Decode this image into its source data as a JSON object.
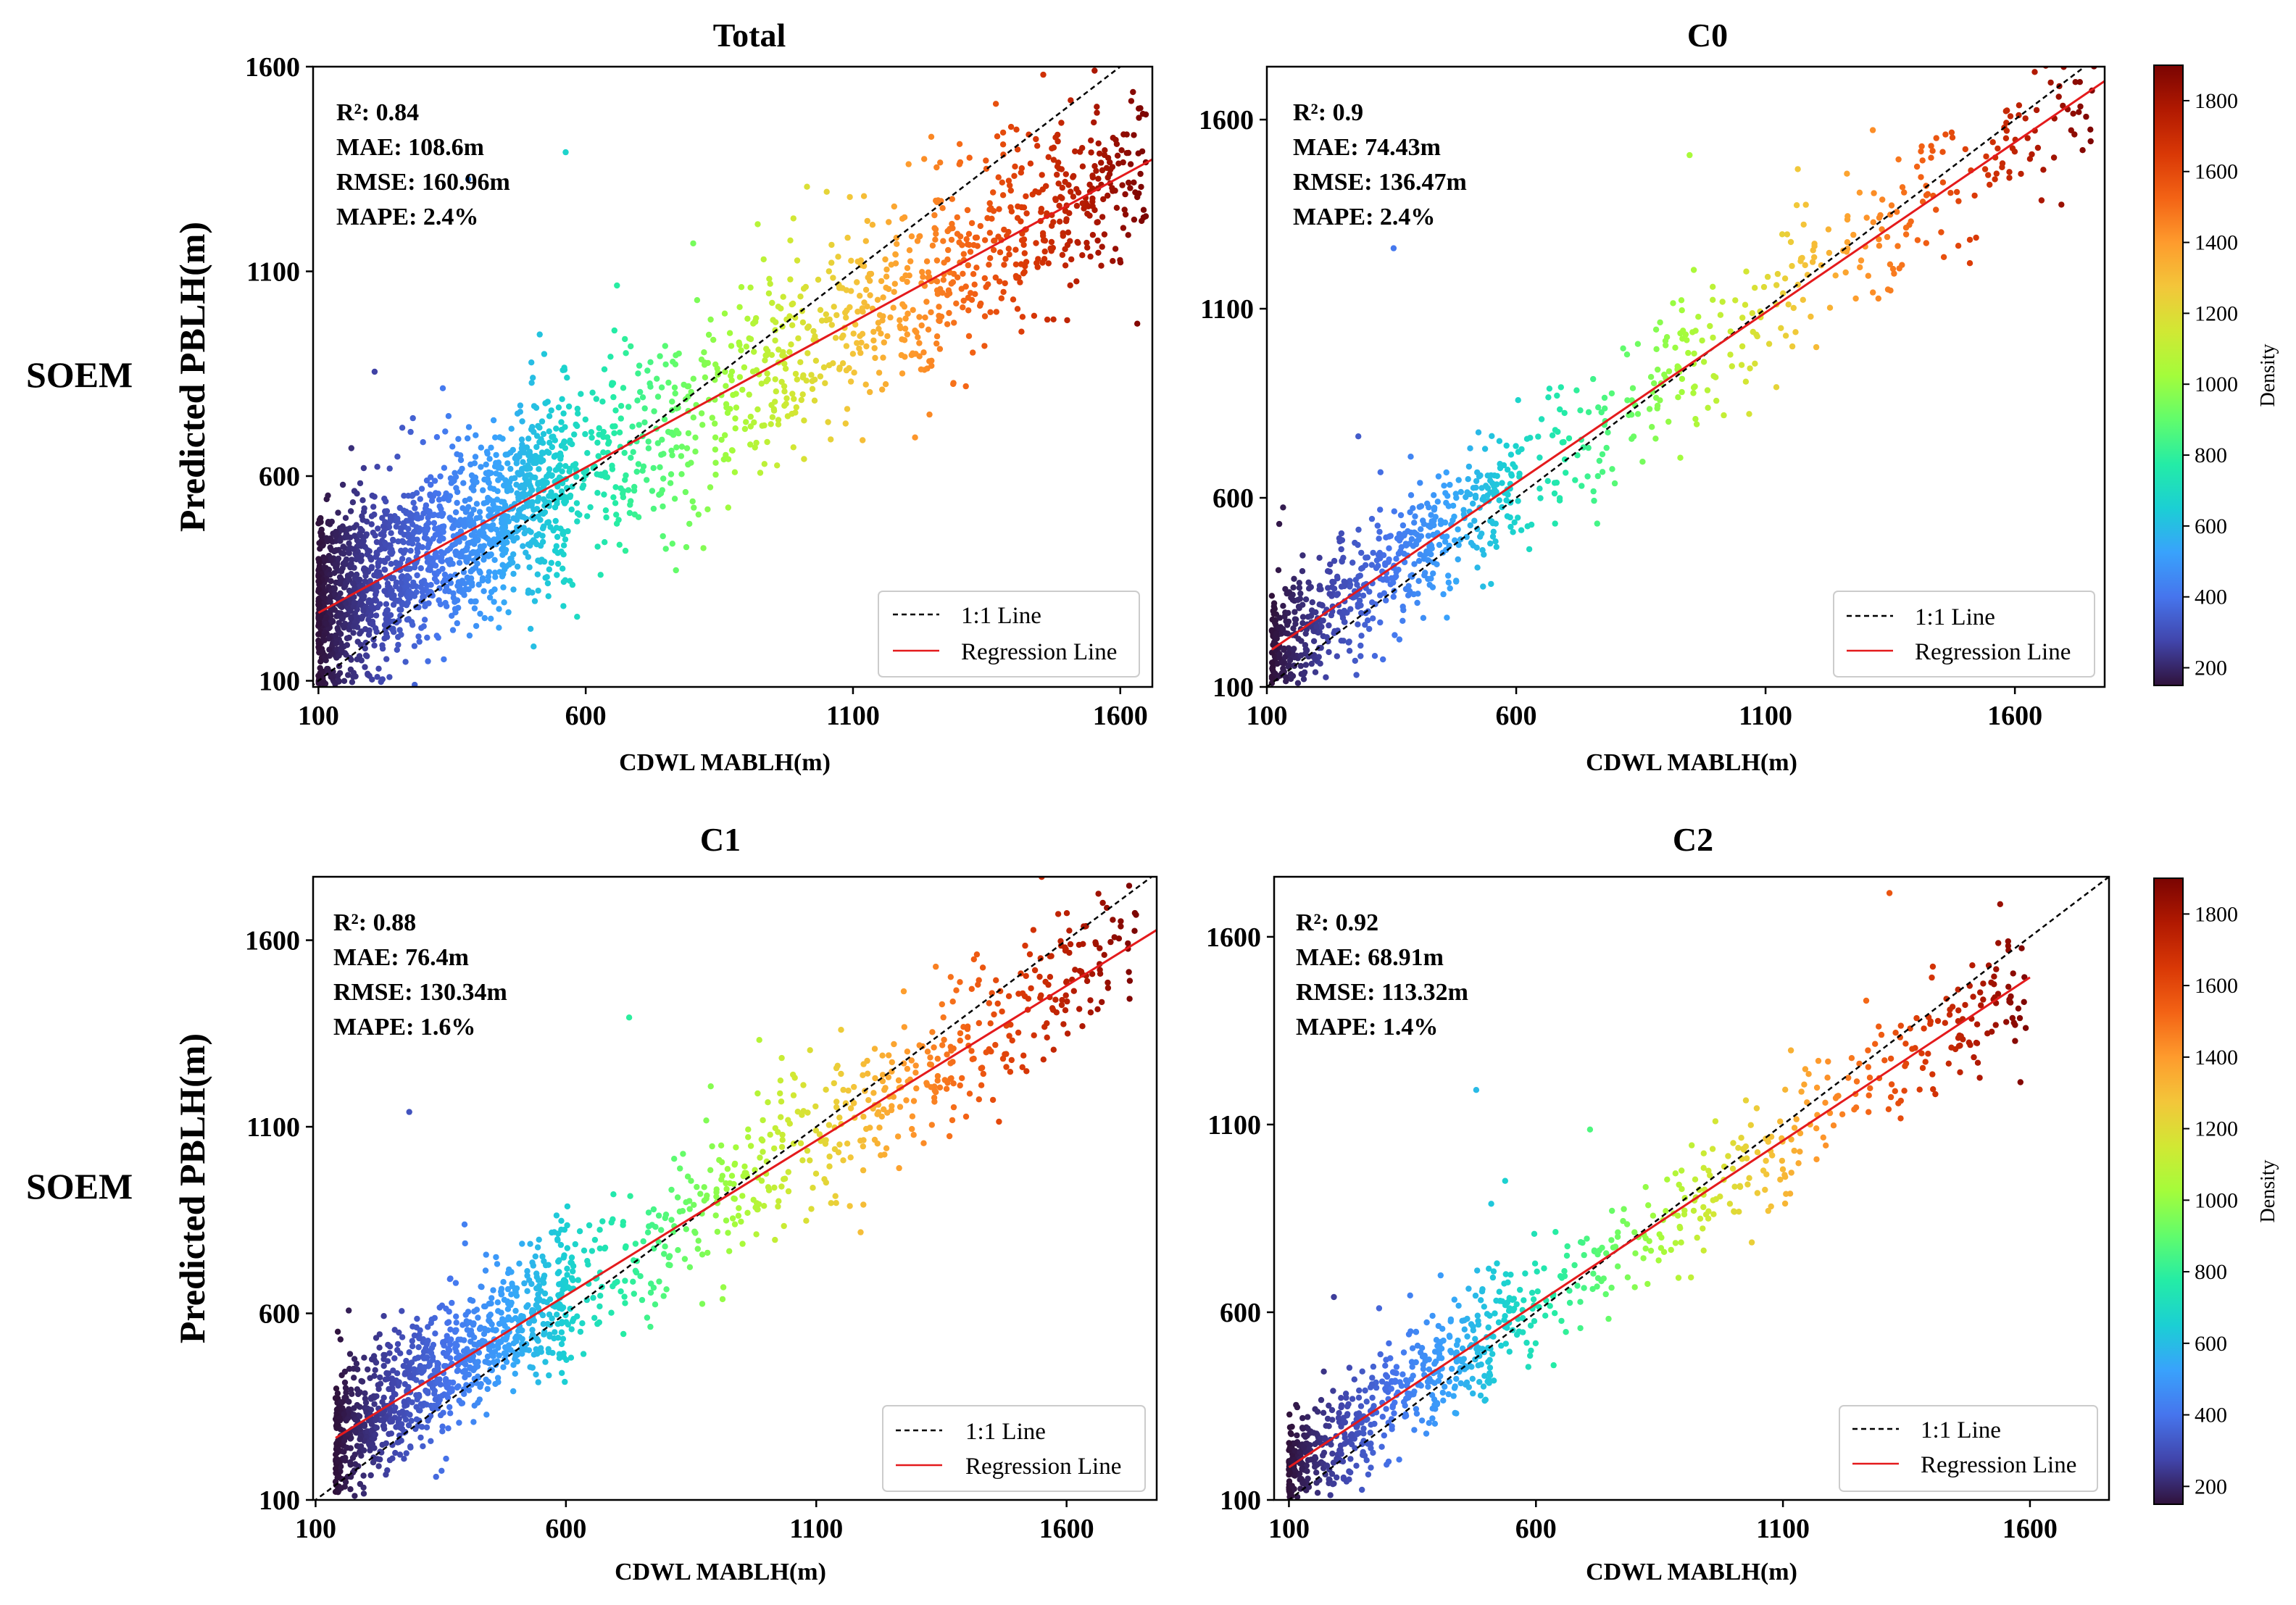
{
  "row_labels": [
    "SOEM",
    "SOEM"
  ],
  "colorbar": {
    "label": "Density",
    "range": [
      150,
      1900
    ],
    "ticks": [
      "200",
      "400",
      "600",
      "800",
      "1000",
      "1200",
      "1400",
      "1600",
      "1800"
    ],
    "colormap": [
      "#30123b",
      "#4145ab",
      "#4675ed",
      "#39a2fc",
      "#1bcfd4",
      "#24eca6",
      "#61fc6c",
      "#a4fc3b",
      "#d1e834",
      "#f3c63a",
      "#fe9b2d",
      "#f36315",
      "#d93806",
      "#b11901",
      "#7a0402"
    ]
  },
  "chart_data": [
    {
      "type": "scatter",
      "title": "Total",
      "xlabel": "CDWL MABLH(m)",
      "ylabel": "Predicted PBLH(m)",
      "xlim": [
        90,
        1660
      ],
      "ylim": [
        85,
        1600
      ],
      "xticks": [
        "100",
        "600",
        "1100",
        "1600"
      ],
      "yticks": [
        "100",
        "600",
        "1100",
        "1600"
      ],
      "stats": [
        "R²: 0.84",
        "MAE: 108.6m",
        "RMSE: 160.96m",
        "MAPE: 2.4%"
      ],
      "legend": [
        "1:1 Line",
        "Regression Line"
      ],
      "regression": {
        "slope": 0.71,
        "intercept": 195,
        "x_range": [
          100,
          1660
        ]
      },
      "sample": {
        "n": 2600,
        "x_min": 100,
        "x_max": 1650,
        "spread": 125,
        "low_spread": 110,
        "seed": 11
      }
    },
    {
      "type": "scatter",
      "title": "C0",
      "xlabel": "CDWL MABLH(m)",
      "ylabel": "",
      "xlim": [
        100,
        1780
      ],
      "ylim": [
        100,
        1740
      ],
      "xticks": [
        "100",
        "600",
        "1100",
        "1600"
      ],
      "yticks": [
        "100",
        "600",
        "1100",
        "1600"
      ],
      "stats": [
        "R²: 0.9",
        "MAE: 74.43m",
        "RMSE: 136.47m",
        "MAPE: 2.4%"
      ],
      "legend": [
        "1:1 Line",
        "Regression Line"
      ],
      "regression": {
        "slope": 0.9,
        "intercept": 100,
        "x_range": [
          110,
          1780
        ]
      },
      "sample": {
        "n": 950,
        "x_min": 110,
        "x_max": 1760,
        "spread": 95,
        "low_spread": 80,
        "seed": 23
      }
    },
    {
      "type": "scatter",
      "title": "C1",
      "xlabel": "CDWL MABLH(m)",
      "ylabel": "Predicted PBLH(m)",
      "xlim": [
        95,
        1780
      ],
      "ylim": [
        100,
        1770
      ],
      "xticks": [
        "100",
        "600",
        "1100",
        "1600"
      ],
      "yticks": [
        "100",
        "600",
        "1100",
        "1600"
      ],
      "stats": [
        "R²: 0.88",
        "MAE: 76.4m",
        "RMSE: 130.34m",
        "MAPE: 1.6%"
      ],
      "legend": [
        "1:1 Line",
        "Regression Line"
      ],
      "regression": {
        "slope": 0.83,
        "intercept": 150,
        "x_range": [
          140,
          1780
        ]
      },
      "sample": {
        "n": 1500,
        "x_min": 140,
        "x_max": 1740,
        "spread": 105,
        "low_spread": 90,
        "seed": 37
      }
    },
    {
      "type": "scatter",
      "title": "C2",
      "xlabel": "CDWL MABLH(m)",
      "ylabel": "",
      "xlim": [
        70,
        1760
      ],
      "ylim": [
        100,
        1760
      ],
      "xticks": [
        "100",
        "600",
        "1100",
        "1600"
      ],
      "yticks": [
        "100",
        "600",
        "1100",
        "1600"
      ],
      "stats": [
        "R²: 0.92",
        "MAE: 68.91m",
        "RMSE: 113.32m",
        "MAPE: 1.4%"
      ],
      "legend": [
        "1:1 Line",
        "Regression Line"
      ],
      "regression": {
        "slope": 0.87,
        "intercept": 100,
        "x_range": [
          100,
          1600
        ]
      },
      "sample": {
        "n": 900,
        "x_min": 100,
        "x_max": 1600,
        "spread": 85,
        "low_spread": 70,
        "seed": 51
      }
    }
  ]
}
